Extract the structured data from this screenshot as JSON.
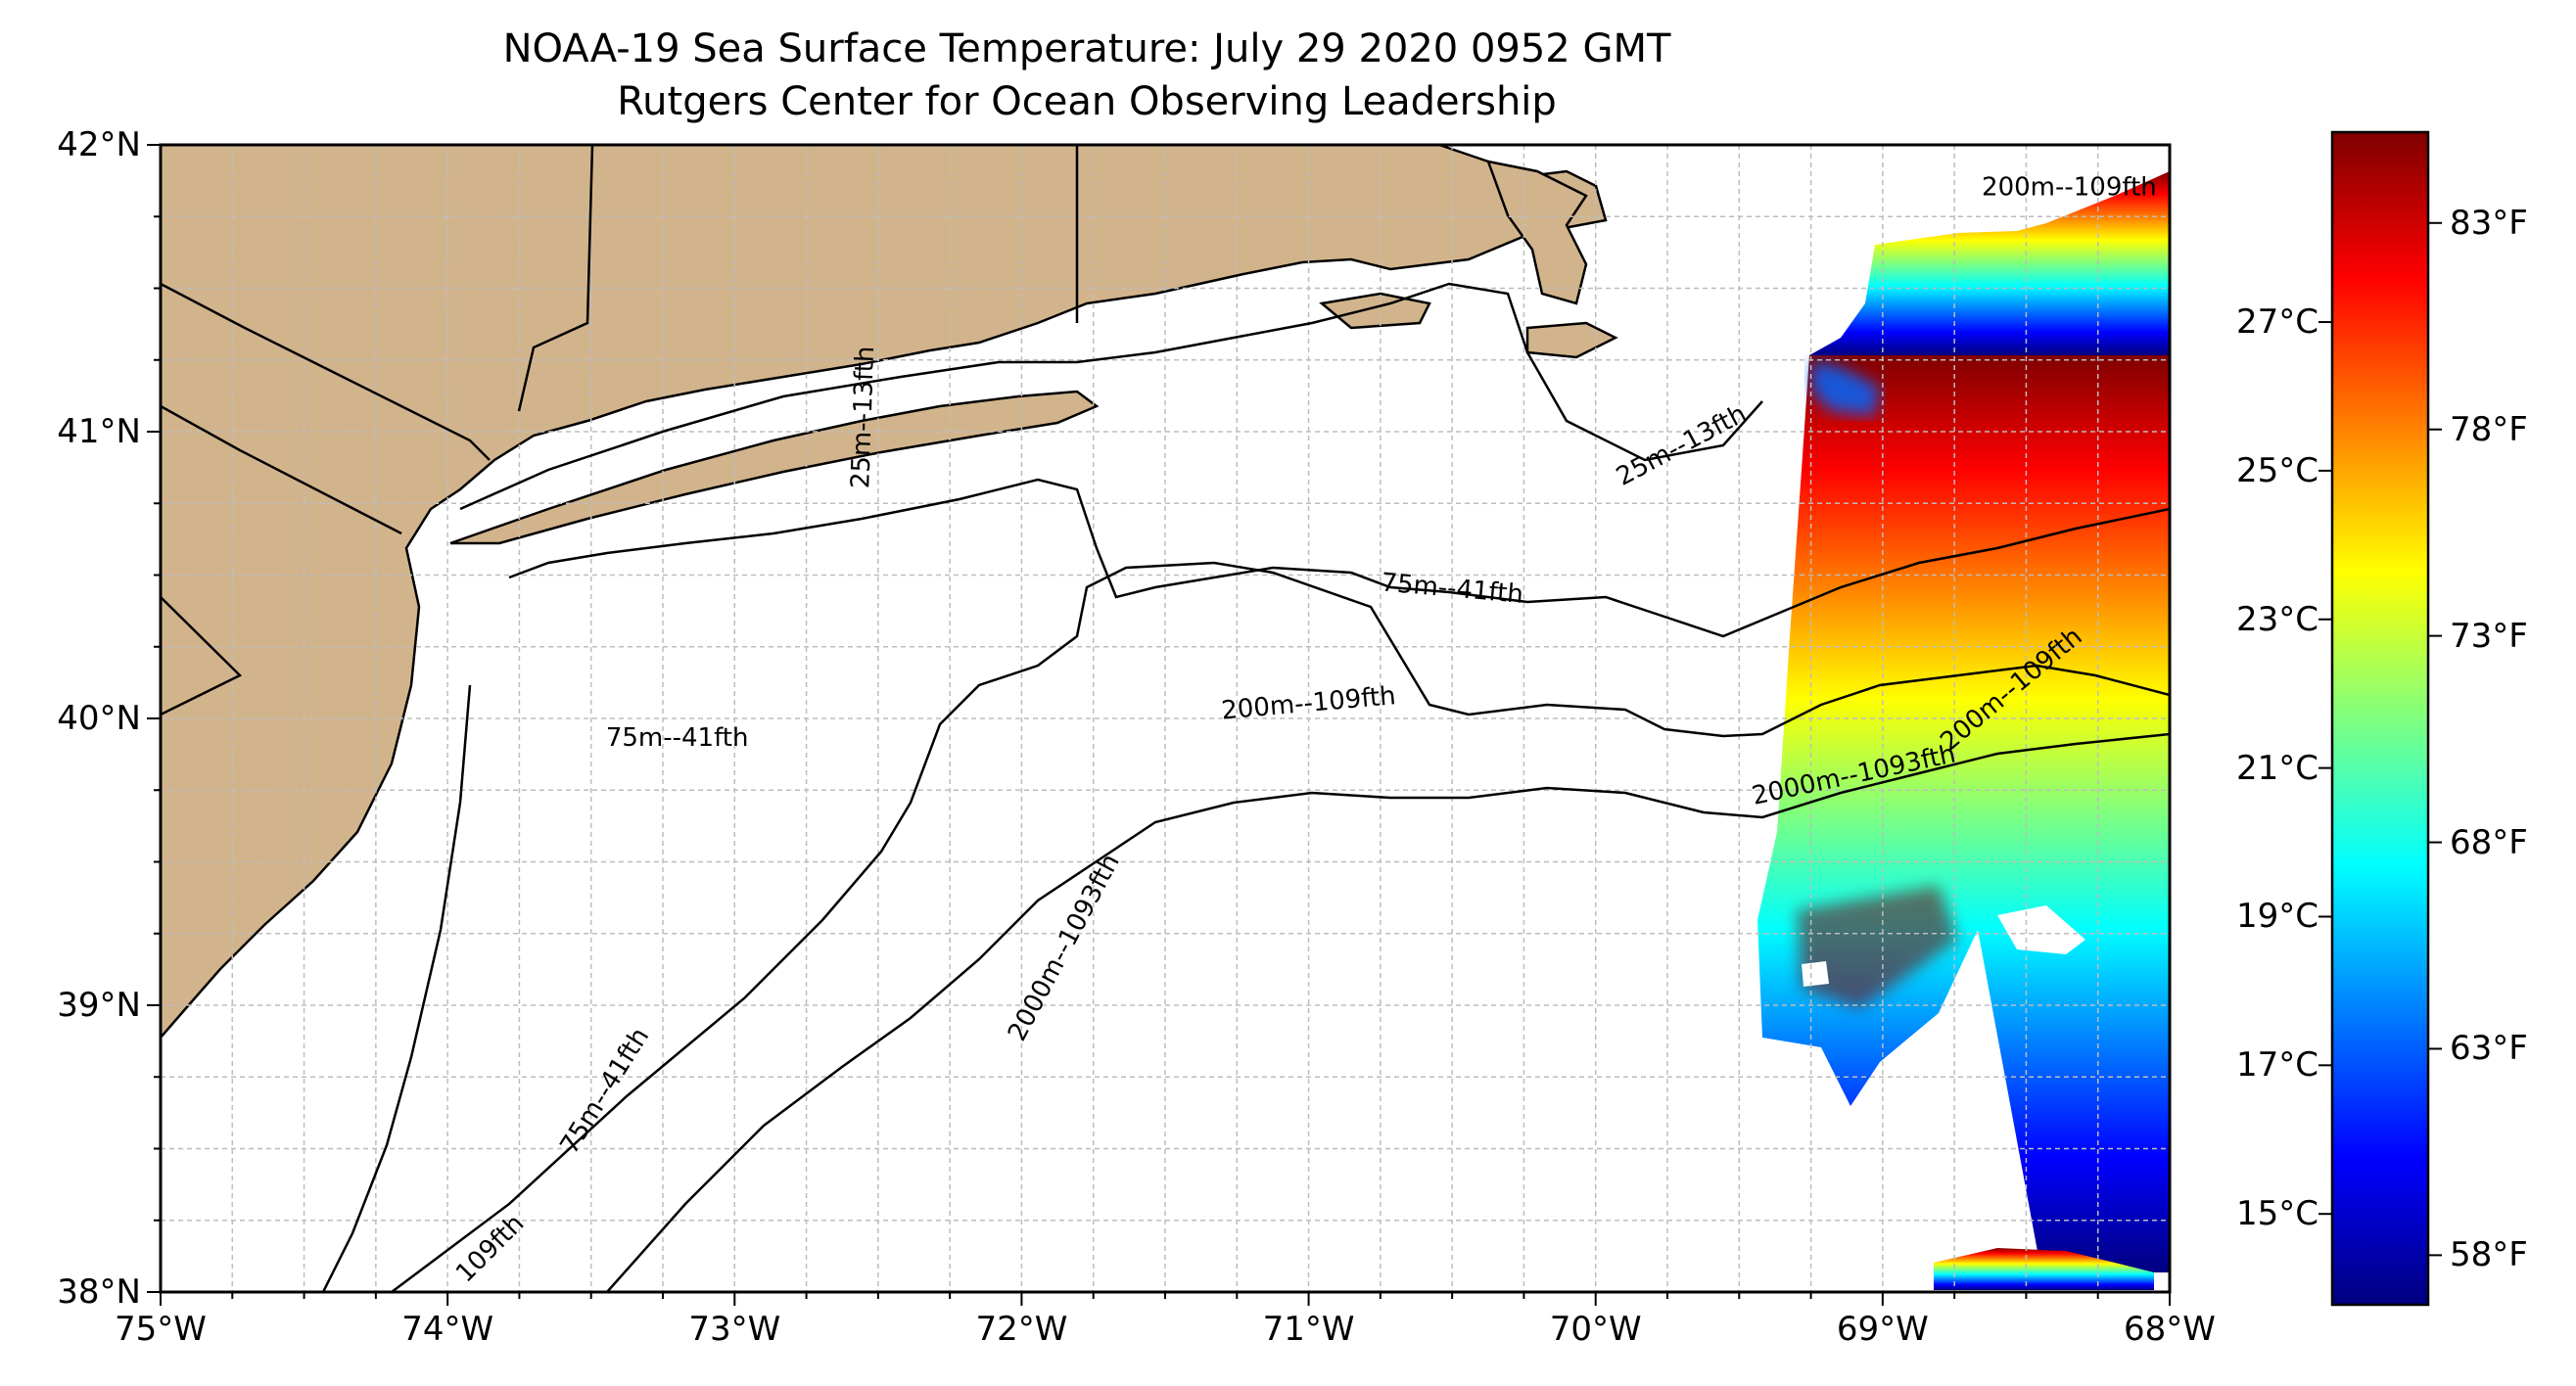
{
  "title": "NOAA-19 Sea Surface Temperature: July 29 2020 0952 GMT",
  "subtitle": "Rutgers Center for Ocean Observing Leadership",
  "map": {
    "lon_range": [
      -75,
      -68
    ],
    "lat_range": [
      38,
      42
    ],
    "lon_ticks": [
      "75°W",
      "74°W",
      "73°W",
      "72°W",
      "71°W",
      "70°W",
      "69°W",
      "68°W"
    ],
    "lat_ticks": [
      "42°N",
      "41°N",
      "40°N",
      "39°N",
      "38°N"
    ],
    "grid": true,
    "land_color": "#d2b48c",
    "contour_labels": [
      {
        "text": "75m--41fth",
        "lon": -70.5,
        "lat": 40.45,
        "rot": 5
      },
      {
        "text": "75m--41fth",
        "lon": -73.2,
        "lat": 39.93,
        "rot": 0
      },
      {
        "text": "75m--41fth",
        "lon": -73.45,
        "lat": 38.7,
        "rot": -58
      },
      {
        "text": "200m--109fth",
        "lon": -71.0,
        "lat": 40.05,
        "rot": -5
      },
      {
        "text": "200m--109fth",
        "lon": -68.35,
        "lat": 41.85,
        "rot": 0
      },
      {
        "text": "200m--109fth",
        "lon": -68.55,
        "lat": 40.1,
        "rot": -40
      },
      {
        "text": "2000m--1093fth",
        "lon": -71.85,
        "lat": 39.2,
        "rot": -62
      },
      {
        "text": "2000m--1093fth",
        "lon": -69.1,
        "lat": 39.8,
        "rot": -12
      },
      {
        "text": "25m--13fth",
        "lon": -69.7,
        "lat": 40.95,
        "rot": -28
      },
      {
        "text": "25m--13fth",
        "lon": -72.55,
        "lat": 41.05,
        "rot": -88
      },
      {
        "text": "109fth",
        "lon": -73.85,
        "lat": 38.15,
        "rot": -45
      }
    ]
  },
  "colorbar": {
    "colors": [
      "#00007f",
      "#0000ff",
      "#007fff",
      "#00ffff",
      "#7fff7f",
      "#ffff00",
      "#ff7f00",
      "#ff0000",
      "#7f0000"
    ],
    "range_f": [
      56.8,
      85.2
    ],
    "fahrenheit_ticks": [
      {
        "label": "83°F",
        "value": 83
      },
      {
        "label": "78°F",
        "value": 78
      },
      {
        "label": "73°F",
        "value": 73
      },
      {
        "label": "68°F",
        "value": 68
      },
      {
        "label": "63°F",
        "value": 63
      },
      {
        "label": "58°F",
        "value": 58
      }
    ],
    "celsius_ticks": [
      {
        "label": "27°C",
        "value": 27
      },
      {
        "label": "25°C",
        "value": 25
      },
      {
        "label": "23°C",
        "value": 23
      },
      {
        "label": "21°C",
        "value": 21
      },
      {
        "label": "19°C",
        "value": 19
      },
      {
        "label": "17°C",
        "value": 17
      },
      {
        "label": "15°C",
        "value": 15
      }
    ]
  }
}
